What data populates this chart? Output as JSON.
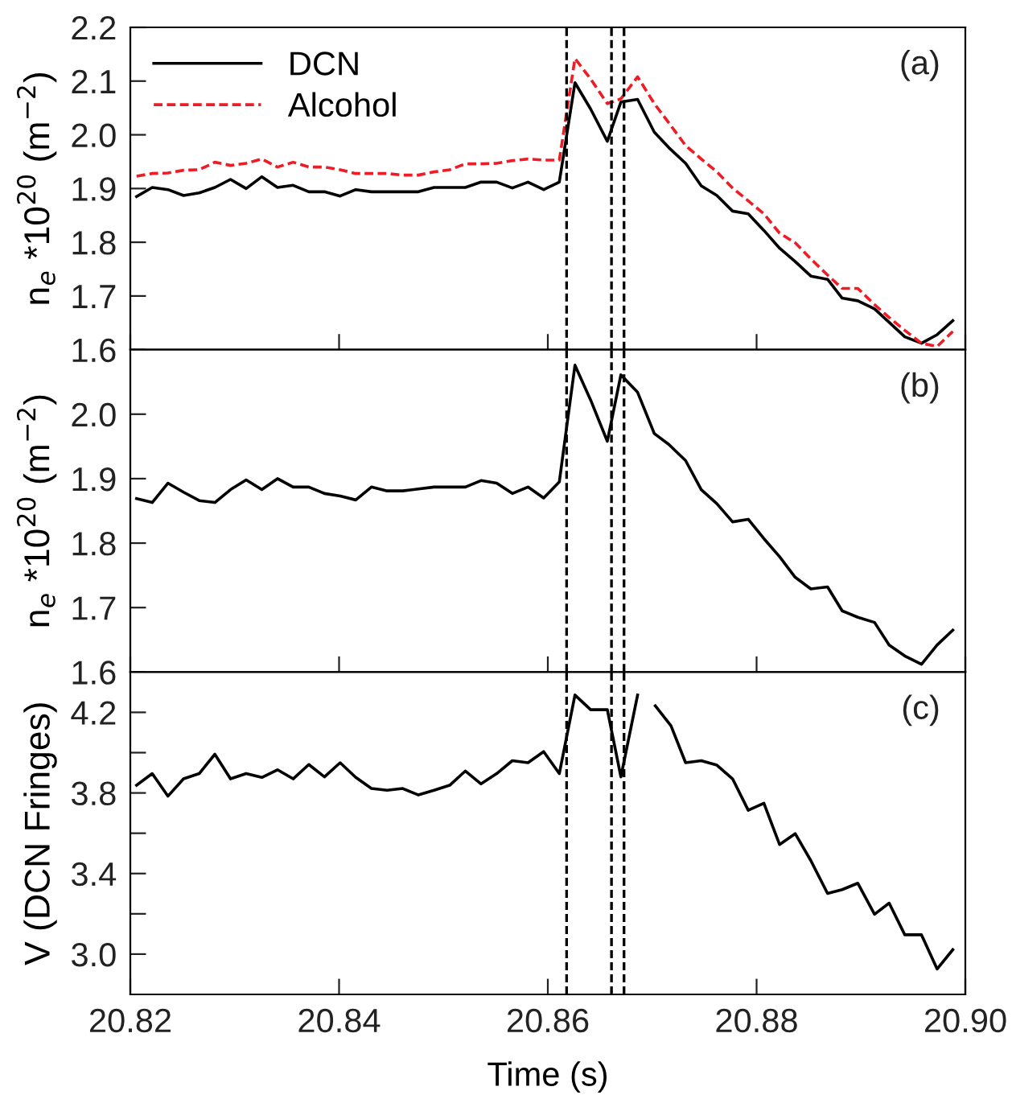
{
  "chart_data": [
    {
      "type": "line",
      "ylabel": "n$_{e}$ *10$^{20}$ (m$^{−2}$)",
      "annotations": [
        "(a)"
      ],
      "legend": "top left",
      "tick_labels": "y",
      "x": [
        20.8206,
        20.8221,
        20.8236,
        20.8251,
        20.8266,
        20.8281,
        20.8296,
        20.8311,
        20.8326,
        20.8341,
        20.8356,
        20.8371,
        20.8386,
        20.8401,
        20.8416,
        20.8431,
        20.8446,
        20.8461,
        20.8476,
        20.8491,
        20.8506,
        20.8521,
        20.8536,
        20.8551,
        20.8566,
        20.8581,
        20.8596,
        20.8611,
        20.8626,
        20.8641,
        20.8657,
        20.867,
        20.8686,
        20.8702,
        20.8716,
        20.8732,
        20.8747,
        20.8762,
        20.8777,
        20.8792,
        20.8807,
        20.8822,
        20.8837,
        20.8852,
        20.8868,
        20.8882,
        20.8897,
        20.8913,
        20.8927,
        20.8942,
        20.8958,
        20.8973,
        20.8988
      ],
      "series": [
        {
          "name": "DCN",
          "color": "#000000",
          "line_style": "solid",
          "values": [
            1.885,
            1.902,
            1.898,
            1.887,
            1.892,
            1.902,
            1.917,
            1.9,
            1.922,
            1.902,
            1.906,
            1.894,
            1.894,
            1.886,
            1.898,
            1.894,
            1.894,
            1.894,
            1.894,
            1.902,
            1.902,
            1.902,
            1.912,
            1.912,
            1.901,
            1.912,
            1.898,
            1.912,
            2.097,
            2.048,
            1.988,
            2.061,
            2.066,
            2.005,
            1.976,
            1.947,
            1.905,
            1.887,
            1.858,
            1.853,
            1.822,
            1.789,
            1.764,
            1.737,
            1.731,
            1.696,
            1.691,
            1.676,
            1.651,
            1.624,
            1.612,
            1.628,
            1.654
          ]
        },
        {
          "name": "Alcohol",
          "color": "#ee1c24",
          "line_style": "dashed",
          "values": [
            1.923,
            1.928,
            1.929,
            1.934,
            1.935,
            1.949,
            1.943,
            1.947,
            1.955,
            1.94,
            1.949,
            1.94,
            1.94,
            1.935,
            1.928,
            1.928,
            1.928,
            1.925,
            1.925,
            1.931,
            1.935,
            1.946,
            1.946,
            1.947,
            1.952,
            1.955,
            1.953,
            1.953,
            2.142,
            2.104,
            2.058,
            2.067,
            2.108,
            2.058,
            2.022,
            1.98,
            1.955,
            1.931,
            1.901,
            1.877,
            1.853,
            1.817,
            1.799,
            1.769,
            1.739,
            1.714,
            1.714,
            1.684,
            1.66,
            1.636,
            1.612,
            1.606,
            1.634
          ]
        }
      ],
      "xlim": [
        20.82,
        20.9
      ],
      "xticks": [
        {
          "value": 20.82,
          "label": null
        },
        {
          "value": 20.84,
          "label": null
        },
        {
          "value": 20.86,
          "label": null
        },
        {
          "value": 20.88,
          "label": null
        },
        {
          "value": 20.9,
          "label": null
        }
      ],
      "ylim": [
        1.6,
        2.2
      ],
      "yticks": [
        1.6,
        1.7,
        1.8,
        1.9,
        {
          "value": 2.0,
          "label": "2.0"
        },
        2.1,
        2.2
      ],
      "ref_lines": [
        {
          "axis": "x",
          "value": 20.8618,
          "color": "#000000",
          "line_style": "dashed"
        },
        {
          "axis": "x",
          "value": 20.8661,
          "color": "#000000",
          "line_style": "dashed"
        },
        {
          "axis": "x",
          "value": 20.8673,
          "color": "#000000",
          "line_style": "dashed"
        }
      ]
    },
    {
      "type": "line",
      "ylabel": "n$_{e}$ *10$^{20}$ (m$^{−2}$)",
      "annotations": [
        "(b)"
      ],
      "tick_labels": "y",
      "x": [
        20.8206,
        20.8221,
        20.8236,
        20.8251,
        20.8266,
        20.8281,
        20.8296,
        20.8311,
        20.8326,
        20.8341,
        20.8356,
        20.8371,
        20.8386,
        20.8401,
        20.8416,
        20.8431,
        20.8446,
        20.8461,
        20.8476,
        20.8491,
        20.8506,
        20.8521,
        20.8536,
        20.8551,
        20.8566,
        20.8581,
        20.8596,
        20.8611,
        20.8626,
        20.8641,
        20.8657,
        20.867,
        20.8686,
        20.8702,
        20.8716,
        20.8732,
        20.8747,
        20.8762,
        20.8777,
        20.8792,
        20.8807,
        20.8822,
        20.8837,
        20.8852,
        20.8868,
        20.8882,
        20.8897,
        20.8913,
        20.8927,
        20.8942,
        20.8958,
        20.8973,
        20.8988
      ],
      "series": [
        {
          "color": "#000000",
          "line_style": "solid",
          "values": [
            1.869,
            1.863,
            1.893,
            1.879,
            1.866,
            1.863,
            1.883,
            1.898,
            1.883,
            1.9,
            1.887,
            1.887,
            1.877,
            1.873,
            1.867,
            1.887,
            1.881,
            1.881,
            1.884,
            1.887,
            1.887,
            1.887,
            1.897,
            1.893,
            1.877,
            1.887,
            1.87,
            1.895,
            2.076,
            2.022,
            1.958,
            2.061,
            2.034,
            1.97,
            1.953,
            1.928,
            1.883,
            1.861,
            1.833,
            1.837,
            1.807,
            1.779,
            1.747,
            1.729,
            1.732,
            1.695,
            1.685,
            1.677,
            1.642,
            1.625,
            1.612,
            1.642,
            1.665
          ]
        }
      ],
      "xlim": [
        20.82,
        20.9
      ],
      "xticks": [
        {
          "value": 20.82,
          "label": null
        },
        {
          "value": 20.84,
          "label": null
        },
        {
          "value": 20.86,
          "label": null
        },
        {
          "value": 20.88,
          "label": null
        },
        {
          "value": 20.9,
          "label": null
        }
      ],
      "ylim": [
        1.6,
        2.1
      ],
      "yticks": [
        1.6,
        1.7,
        1.8,
        1.9,
        {
          "value": 2.0,
          "label": "2.0"
        }
      ],
      "ref_lines": [
        {
          "axis": "x",
          "value": 20.8618,
          "color": "#000000",
          "line_style": "dashed"
        },
        {
          "axis": "x",
          "value": 20.8661,
          "color": "#000000",
          "line_style": "dashed"
        },
        {
          "axis": "x",
          "value": 20.8673,
          "color": "#000000",
          "line_style": "dashed"
        }
      ]
    },
    {
      "type": "line",
      "ylabel": "V (DCN Fringes)",
      "xlabel": "Time (s)",
      "annotations": [
        "(c)"
      ],
      "x": [
        20.8206,
        20.8221,
        20.8236,
        20.8251,
        20.8266,
        20.8281,
        20.8296,
        20.8311,
        20.8326,
        20.8341,
        20.8356,
        20.8371,
        20.8386,
        20.8401,
        20.8416,
        20.8431,
        20.8446,
        20.8461,
        20.8476,
        20.8491,
        20.8506,
        20.8521,
        20.8536,
        20.8551,
        20.8566,
        20.8581,
        20.8596,
        20.8611,
        20.8626,
        20.8641,
        20.8657,
        20.867,
        20.8686,
        20.8694,
        20.8703,
        20.8718,
        20.8732,
        20.8747,
        20.8762,
        20.8777,
        20.8792,
        20.8807,
        20.8822,
        20.8837,
        20.8852,
        20.8868,
        20.8882,
        20.8897,
        20.8913,
        20.8927,
        20.8942,
        20.8958,
        20.8973,
        20.8988
      ],
      "series": [
        {
          "color": "#000000",
          "line_style": "solid",
          "values": [
            3.838,
            3.896,
            3.784,
            3.87,
            3.896,
            3.992,
            3.87,
            3.896,
            3.877,
            3.915,
            3.87,
            3.941,
            3.88,
            3.95,
            3.877,
            3.822,
            3.813,
            3.822,
            3.79,
            3.813,
            3.838,
            3.909,
            3.845,
            3.896,
            3.96,
            3.95,
            4.005,
            3.896,
            4.286,
            4.213,
            4.213,
            3.88,
            4.286,
            null,
            4.232,
            4.133,
            3.95,
            3.96,
            3.938,
            3.87,
            3.714,
            3.749,
            3.544,
            3.598,
            3.464,
            3.301,
            3.32,
            3.352,
            3.198,
            3.253,
            3.096,
            3.096,
            2.926,
            3.022
          ]
        }
      ],
      "xlim": [
        20.82,
        20.9
      ],
      "xticks": [
        20.82,
        20.84,
        20.86,
        20.88,
        {
          "value": 20.9,
          "label": "20.90"
        }
      ],
      "ylim": [
        2.8,
        4.4
      ],
      "yticks": [
        {
          "value": 3.0,
          "label": "3.0"
        },
        {
          "value": 3.2,
          "label": null
        },
        3.4,
        {
          "value": 3.6,
          "label": null
        },
        3.8,
        {
          "value": 4.0,
          "label": null
        },
        4.2
      ],
      "ref_lines": [
        {
          "axis": "x",
          "value": 20.8618,
          "color": "#000000",
          "line_style": "dashed"
        },
        {
          "axis": "x",
          "value": 20.8661,
          "color": "#000000",
          "line_style": "dashed"
        },
        {
          "axis": "x",
          "value": 20.8673,
          "color": "#000000",
          "line_style": "dashed"
        }
      ]
    }
  ]
}
